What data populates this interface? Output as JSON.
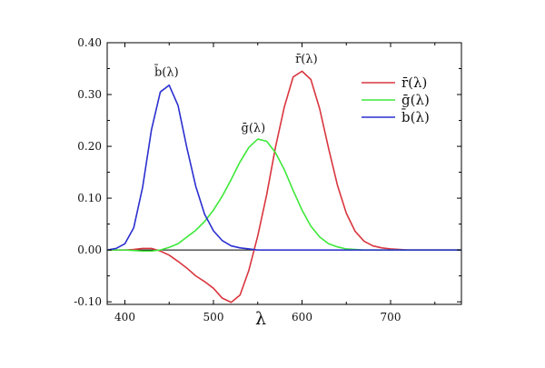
{
  "chart_data": {
    "type": "line",
    "title": "",
    "xlabel": "λ",
    "ylabel": "",
    "xlim": [
      380,
      780
    ],
    "ylim": [
      -0.105,
      0.4
    ],
    "x_ticks": [
      400,
      500,
      600,
      700
    ],
    "x_tick_labels": [
      "400",
      "500",
      "600",
      "700"
    ],
    "y_ticks": [
      -0.1,
      0.0,
      0.1,
      0.2,
      0.3,
      0.4
    ],
    "y_tick_labels": [
      "-0.10",
      "0.00",
      "0.10",
      "0.20",
      "0.30",
      "0.40"
    ],
    "baseline": 0.0,
    "grid": false,
    "legend_position": "top-right",
    "series": [
      {
        "key": "r",
        "name": "r̄(λ)",
        "color": "#d9363e",
        "x": [
          380,
          390,
          400,
          410,
          420,
          430,
          440,
          450,
          460,
          470,
          480,
          490,
          500,
          510,
          520,
          530,
          540,
          550,
          560,
          570,
          580,
          590,
          600,
          610,
          620,
          630,
          640,
          650,
          660,
          670,
          680,
          690,
          700,
          720,
          740,
          760,
          780
        ],
        "y": [
          0.0,
          0.0,
          0.0,
          0.001,
          0.003,
          0.003,
          -0.002,
          -0.01,
          -0.022,
          -0.035,
          -0.05,
          -0.061,
          -0.074,
          -0.093,
          -0.101,
          -0.087,
          -0.039,
          0.027,
          0.106,
          0.198,
          0.276,
          0.334,
          0.345,
          0.329,
          0.272,
          0.196,
          0.125,
          0.071,
          0.036,
          0.017,
          0.008,
          0.004,
          0.002,
          0.0,
          0.0,
          0.0,
          0.0
        ]
      },
      {
        "key": "g",
        "name": "ḡ(λ)",
        "color": "#3ee83a",
        "x": [
          380,
          390,
          400,
          410,
          420,
          430,
          440,
          450,
          460,
          470,
          480,
          490,
          500,
          510,
          520,
          530,
          540,
          550,
          560,
          570,
          580,
          590,
          600,
          610,
          620,
          630,
          640,
          650,
          660,
          670,
          680,
          700,
          720,
          740,
          760,
          780
        ],
        "y": [
          0.0,
          0.0,
          0.0,
          -0.001,
          -0.002,
          -0.002,
          0.0,
          0.005,
          0.012,
          0.025,
          0.038,
          0.055,
          0.077,
          0.104,
          0.136,
          0.17,
          0.198,
          0.214,
          0.21,
          0.188,
          0.155,
          0.115,
          0.077,
          0.046,
          0.025,
          0.012,
          0.006,
          0.002,
          0.001,
          0.0,
          0.0,
          0.0,
          0.0,
          0.0,
          0.0,
          0.0
        ]
      },
      {
        "key": "b",
        "name": "b̄(λ)",
        "color": "#2a2fcf",
        "x": [
          380,
          390,
          400,
          410,
          420,
          430,
          440,
          450,
          460,
          470,
          480,
          490,
          500,
          510,
          520,
          530,
          540,
          550,
          560,
          570,
          580,
          600,
          620,
          640,
          660,
          680,
          700,
          740,
          780
        ],
        "y": [
          0.0,
          0.003,
          0.012,
          0.043,
          0.121,
          0.232,
          0.305,
          0.318,
          0.279,
          0.197,
          0.123,
          0.069,
          0.037,
          0.018,
          0.008,
          0.004,
          0.002,
          0.0,
          0.0,
          0.0,
          0.0,
          0.0,
          0.0,
          0.0,
          0.0,
          0.0,
          0.0,
          0.0,
          0.0
        ]
      }
    ],
    "peak_labels": [
      {
        "key": "b",
        "text": "b̄(λ)",
        "x": 447,
        "y": 0.336
      },
      {
        "key": "g",
        "text": "ḡ(λ)",
        "x": 545,
        "y": 0.228
      },
      {
        "key": "r",
        "text": "r̄(λ)",
        "x": 605,
        "y": 0.361
      }
    ]
  }
}
